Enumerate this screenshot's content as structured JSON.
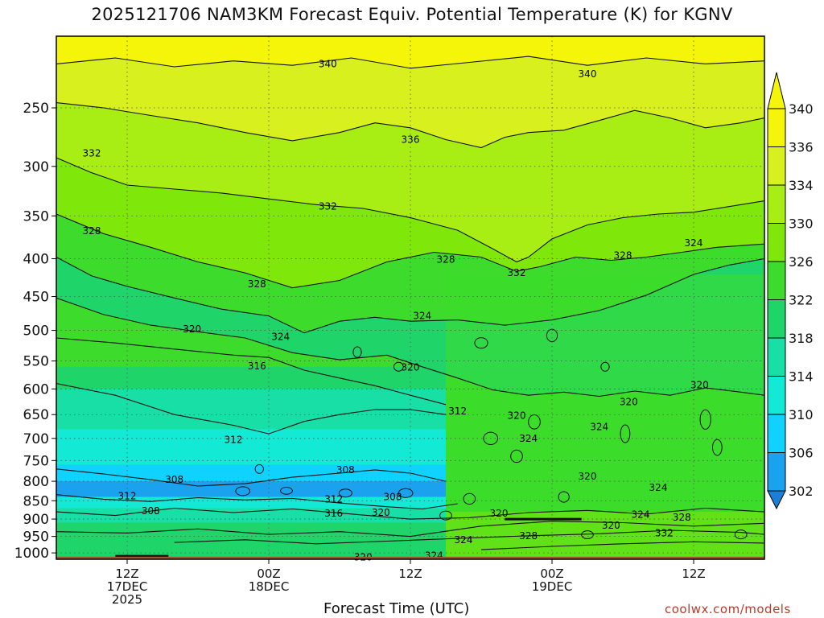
{
  "page": {
    "title": "2025121706 NAM3KM Forecast Equiv. Potential Temperature (K) for KGNV",
    "credit": "coolwx.com/models"
  },
  "colors": {
    "ground": "#a0522d",
    "contour": "#111111",
    "grid": "#555555"
  },
  "chart_data": {
    "type": "heatmap",
    "title": "2025121706 NAM3KM Forecast Equiv. Potential Temperature (K) for KGNV",
    "xlabel": "Forecast Time (UTC)",
    "ylabel": "",
    "x_unit": "forecast hour",
    "xlim": [
      0,
      60
    ],
    "y_unit": "hPa",
    "ylim": [
      1020,
      200
    ],
    "y_scale": "log",
    "y_ticks": [
      250,
      300,
      350,
      400,
      450,
      500,
      550,
      600,
      650,
      700,
      750,
      800,
      850,
      900,
      950,
      1000
    ],
    "x_ticks": [
      {
        "hour": 6,
        "lines": [
          "12Z",
          "17DEC",
          "2025"
        ]
      },
      {
        "hour": 18,
        "lines": [
          "00Z",
          "18DEC"
        ]
      },
      {
        "hour": 30,
        "lines": [
          "12Z"
        ]
      },
      {
        "hour": 42,
        "lines": [
          "00Z",
          "19DEC"
        ]
      },
      {
        "hour": 54,
        "lines": [
          "12Z"
        ]
      }
    ],
    "colorbar": {
      "ticks": [
        340,
        336,
        334,
        330,
        326,
        322,
        318,
        314,
        310,
        306,
        302
      ],
      "bands": [
        {
          "min": 338,
          "color": "#f5f50a"
        },
        {
          "min": 334,
          "color": "#d7f01e"
        },
        {
          "min": 330,
          "color": "#a8ee14"
        },
        {
          "min": 326,
          "color": "#7fe80a"
        },
        {
          "min": 322,
          "color": "#3ddc2c"
        },
        {
          "min": 318,
          "color": "#1fd56a"
        },
        {
          "min": 314,
          "color": "#18dfa6"
        },
        {
          "min": 310,
          "color": "#12ead6"
        },
        {
          "min": 306,
          "color": "#10d2ff"
        },
        {
          "min": 302,
          "color": "#1aa2ee"
        },
        {
          "min": 0,
          "color": "#1a7fd8"
        }
      ]
    },
    "contours": [
      {
        "level": 340,
        "points": [
          [
            0,
            218
          ],
          [
            5,
            214
          ],
          [
            10,
            220
          ],
          [
            15,
            216
          ],
          [
            20,
            219
          ],
          [
            25,
            214
          ],
          [
            30,
            221
          ],
          [
            35,
            217
          ],
          [
            40,
            213
          ],
          [
            45,
            219
          ],
          [
            50,
            214
          ],
          [
            55,
            218
          ],
          [
            60,
            216
          ]
        ]
      },
      {
        "level": 336,
        "points": [
          [
            0,
            246
          ],
          [
            4,
            250
          ],
          [
            8,
            256
          ],
          [
            12,
            262
          ],
          [
            16,
            270
          ],
          [
            20,
            277
          ],
          [
            24,
            270
          ],
          [
            27,
            262
          ],
          [
            30,
            266
          ],
          [
            33,
            276
          ],
          [
            36,
            283
          ],
          [
            38,
            274
          ],
          [
            40,
            270
          ],
          [
            43,
            268
          ],
          [
            46,
            260
          ],
          [
            49,
            252
          ],
          [
            52,
            258
          ],
          [
            55,
            266
          ],
          [
            58,
            262
          ],
          [
            60,
            258
          ]
        ]
      },
      {
        "level": 332,
        "points": [
          [
            0,
            292
          ],
          [
            3,
            306
          ],
          [
            6,
            318
          ],
          [
            10,
            322
          ],
          [
            14,
            326
          ],
          [
            18,
            332
          ],
          [
            22,
            338
          ],
          [
            26,
            342
          ],
          [
            30,
            352
          ],
          [
            34,
            366
          ],
          [
            37,
            388
          ],
          [
            39,
            404
          ],
          [
            40,
            398
          ],
          [
            42,
            376
          ],
          [
            45,
            360
          ],
          [
            48,
            352
          ],
          [
            51,
            348
          ],
          [
            54,
            346
          ],
          [
            57,
            340
          ],
          [
            60,
            334
          ]
        ]
      },
      {
        "level": 328,
        "points": [
          [
            0,
            348
          ],
          [
            4,
            370
          ],
          [
            8,
            386
          ],
          [
            12,
            404
          ],
          [
            16,
            418
          ],
          [
            20,
            438
          ],
          [
            24,
            428
          ],
          [
            28,
            404
          ],
          [
            32,
            392
          ],
          [
            36,
            398
          ],
          [
            39,
            416
          ],
          [
            41,
            410
          ],
          [
            44,
            398
          ],
          [
            47,
            402
          ],
          [
            50,
            398
          ],
          [
            53,
            392
          ],
          [
            56,
            386
          ],
          [
            60,
            382
          ]
        ]
      },
      {
        "level": 324,
        "points": [
          [
            0,
            398
          ],
          [
            3,
            422
          ],
          [
            6,
            436
          ],
          [
            10,
            452
          ],
          [
            14,
            468
          ],
          [
            18,
            478
          ],
          [
            21,
            504
          ],
          [
            24,
            486
          ],
          [
            27,
            480
          ],
          [
            30,
            486
          ],
          [
            34,
            484
          ],
          [
            38,
            492
          ],
          [
            42,
            484
          ],
          [
            46,
            470
          ],
          [
            50,
            448
          ],
          [
            54,
            420
          ],
          [
            57,
            408
          ],
          [
            60,
            400
          ]
        ]
      },
      {
        "level": 320,
        "points": [
          [
            0,
            452
          ],
          [
            4,
            476
          ],
          [
            8,
            492
          ],
          [
            12,
            502
          ],
          [
            16,
            512
          ],
          [
            20,
            536
          ],
          [
            24,
            548
          ],
          [
            28,
            540
          ],
          [
            31,
            560
          ],
          [
            34,
            580
          ],
          [
            37,
            602
          ],
          [
            40,
            612
          ],
          [
            43,
            606
          ],
          [
            46,
            614
          ],
          [
            49,
            604
          ],
          [
            52,
            612
          ],
          [
            55,
            598
          ],
          [
            58,
            606
          ],
          [
            60,
            612
          ]
        ]
      },
      {
        "level": 316,
        "points": [
          [
            0,
            512
          ],
          [
            5,
            520
          ],
          [
            10,
            530
          ],
          [
            15,
            540
          ],
          [
            18,
            544
          ],
          [
            21,
            566
          ],
          [
            24,
            580
          ],
          [
            27,
            594
          ],
          [
            30,
            612
          ],
          [
            33,
            630
          ]
        ]
      },
      {
        "level": 312,
        "points": [
          [
            0,
            590
          ],
          [
            5,
            612
          ],
          [
            10,
            650
          ],
          [
            15,
            672
          ],
          [
            18,
            690
          ],
          [
            21,
            664
          ],
          [
            24,
            650
          ],
          [
            27,
            640
          ],
          [
            30,
            640
          ],
          [
            33,
            650
          ]
        ]
      },
      {
        "level": 308,
        "points": [
          [
            0,
            770
          ],
          [
            4,
            782
          ],
          [
            8,
            796
          ],
          [
            12,
            812
          ],
          [
            16,
            806
          ],
          [
            20,
            790
          ],
          [
            24,
            780
          ],
          [
            27,
            772
          ],
          [
            30,
            780
          ],
          [
            33,
            800
          ]
        ]
      },
      {
        "level": 312,
        "points": [
          [
            0,
            834
          ],
          [
            4,
            846
          ],
          [
            8,
            852
          ],
          [
            12,
            842
          ],
          [
            16,
            848
          ],
          [
            20,
            844
          ],
          [
            24,
            856
          ],
          [
            28,
            866
          ],
          [
            31,
            872
          ],
          [
            34,
            858
          ]
        ]
      },
      {
        "level": 316,
        "points": [
          [
            0,
            880
          ],
          [
            5,
            890
          ],
          [
            10,
            870
          ],
          [
            15,
            882
          ],
          [
            20,
            872
          ],
          [
            25,
            886
          ],
          [
            30,
            900
          ],
          [
            35,
            896
          ],
          [
            40,
            882
          ],
          [
            45,
            876
          ],
          [
            50,
            886
          ],
          [
            55,
            870
          ],
          [
            60,
            880
          ]
        ]
      },
      {
        "level": 320,
        "points": [
          [
            0,
            936
          ],
          [
            6,
            940
          ],
          [
            12,
            928
          ],
          [
            18,
            944
          ],
          [
            24,
            936
          ],
          [
            30,
            950
          ],
          [
            36,
            920
          ],
          [
            42,
            906
          ],
          [
            48,
            910
          ],
          [
            54,
            920
          ],
          [
            60,
            912
          ]
        ]
      },
      {
        "level": 324,
        "points": [
          [
            10,
            968
          ],
          [
            16,
            960
          ],
          [
            22,
            972
          ],
          [
            28,
            964
          ],
          [
            34,
            956
          ],
          [
            40,
            948
          ],
          [
            46,
            942
          ],
          [
            52,
            932
          ],
          [
            58,
            938
          ],
          [
            60,
            944
          ]
        ]
      },
      {
        "level": 328,
        "points": [
          [
            36,
            990
          ],
          [
            42,
            980
          ],
          [
            48,
            972
          ],
          [
            54,
            966
          ],
          [
            60,
            970
          ]
        ]
      }
    ],
    "contour_labels": [
      {
        "hour": 23,
        "p": 218,
        "level": 340
      },
      {
        "hour": 45,
        "p": 225,
        "level": 340
      },
      {
        "hour": 30,
        "p": 276,
        "level": 336
      },
      {
        "hour": 3,
        "p": 288,
        "level": 332
      },
      {
        "hour": 23,
        "p": 340,
        "level": 332
      },
      {
        "hour": 39,
        "p": 418,
        "level": 332
      },
      {
        "hour": 3,
        "p": 367,
        "level": 328
      },
      {
        "hour": 17,
        "p": 433,
        "level": 328
      },
      {
        "hour": 33,
        "p": 401,
        "level": 328
      },
      {
        "hour": 48,
        "p": 396,
        "level": 328
      },
      {
        "hour": 54,
        "p": 381,
        "level": 324
      },
      {
        "hour": 31,
        "p": 478,
        "level": 324
      },
      {
        "hour": 19,
        "p": 510,
        "level": 324
      },
      {
        "hour": 11.5,
        "p": 498,
        "level": 320
      },
      {
        "hour": 30,
        "p": 561,
        "level": 320
      },
      {
        "hour": 17,
        "p": 559,
        "level": 316
      },
      {
        "hour": 34,
        "p": 643,
        "level": 312
      },
      {
        "hour": 15,
        "p": 703,
        "level": 312
      },
      {
        "hour": 39,
        "p": 652,
        "level": 320
      },
      {
        "hour": 48.5,
        "p": 625,
        "level": 320
      },
      {
        "hour": 54.5,
        "p": 593,
        "level": 320
      },
      {
        "hour": 46,
        "p": 675,
        "level": 324
      },
      {
        "hour": 40,
        "p": 700,
        "level": 324
      },
      {
        "hour": 24.5,
        "p": 772,
        "level": 308
      },
      {
        "hour": 10,
        "p": 796,
        "level": 308
      },
      {
        "hour": 6,
        "p": 838,
        "level": 312
      },
      {
        "hour": 8,
        "p": 878,
        "level": 308
      },
      {
        "hour": 23.5,
        "p": 846,
        "level": 312
      },
      {
        "hour": 23.5,
        "p": 884,
        "level": 316
      },
      {
        "hour": 27.5,
        "p": 882,
        "level": 320
      },
      {
        "hour": 28.5,
        "p": 840,
        "level": 308
      },
      {
        "hour": 37.5,
        "p": 884,
        "level": 320
      },
      {
        "hour": 45,
        "p": 788,
        "level": 320
      },
      {
        "hour": 51,
        "p": 816,
        "level": 324
      },
      {
        "hour": 49.5,
        "p": 888,
        "level": 324
      },
      {
        "hour": 47,
        "p": 918,
        "level": 320
      },
      {
        "hour": 53,
        "p": 895,
        "level": 328
      },
      {
        "hour": 51.5,
        "p": 940,
        "level": 332
      },
      {
        "hour": 40,
        "p": 948,
        "level": 328
      },
      {
        "hour": 34.5,
        "p": 960,
        "level": 324
      },
      {
        "hour": 26,
        "p": 1013,
        "level": 320
      },
      {
        "hour": 32,
        "p": 1009,
        "level": 324
      }
    ],
    "pockets": [
      {
        "hour": 42,
        "p": 508,
        "rx": 0.45,
        "ry": 14
      },
      {
        "hour": 36,
        "p": 520,
        "rx": 0.55,
        "ry": 12
      },
      {
        "hour": 40.5,
        "p": 665,
        "rx": 0.5,
        "ry": 16
      },
      {
        "hour": 36.8,
        "p": 700,
        "rx": 0.6,
        "ry": 14
      },
      {
        "hour": 39,
        "p": 740,
        "rx": 0.5,
        "ry": 14
      },
      {
        "hour": 48.2,
        "p": 690,
        "rx": 0.4,
        "ry": 20
      },
      {
        "hour": 55,
        "p": 660,
        "rx": 0.45,
        "ry": 22
      },
      {
        "hour": 56,
        "p": 720,
        "rx": 0.4,
        "ry": 18
      },
      {
        "hour": 17.2,
        "p": 770,
        "rx": 0.35,
        "ry": 10
      },
      {
        "hour": 15.8,
        "p": 825,
        "rx": 0.6,
        "ry": 10
      },
      {
        "hour": 29.6,
        "p": 830,
        "rx": 0.6,
        "ry": 10
      },
      {
        "hour": 19.5,
        "p": 824,
        "rx": 0.5,
        "ry": 8
      },
      {
        "hour": 24.5,
        "p": 830,
        "rx": 0.55,
        "ry": 9
      },
      {
        "hour": 35,
        "p": 845,
        "rx": 0.5,
        "ry": 12
      },
      {
        "hour": 43,
        "p": 840,
        "rx": 0.45,
        "ry": 12
      },
      {
        "hour": 33,
        "p": 890,
        "rx": 0.5,
        "ry": 10
      },
      {
        "hour": 58,
        "p": 944,
        "rx": 0.5,
        "ry": 10
      },
      {
        "hour": 45,
        "p": 945,
        "rx": 0.5,
        "ry": 9
      },
      {
        "hour": 25.5,
        "p": 535,
        "rx": 0.35,
        "ry": 12
      },
      {
        "hour": 29,
        "p": 560,
        "rx": 0.4,
        "ry": 10
      },
      {
        "hour": 46.5,
        "p": 560,
        "rx": 0.35,
        "ry": 10
      }
    ],
    "cold_streaks": [
      {
        "hour0": 5,
        "hour1": 9.5,
        "p": 1010
      },
      {
        "hour0": 38,
        "hour1": 44.5,
        "p": 900
      }
    ]
  }
}
